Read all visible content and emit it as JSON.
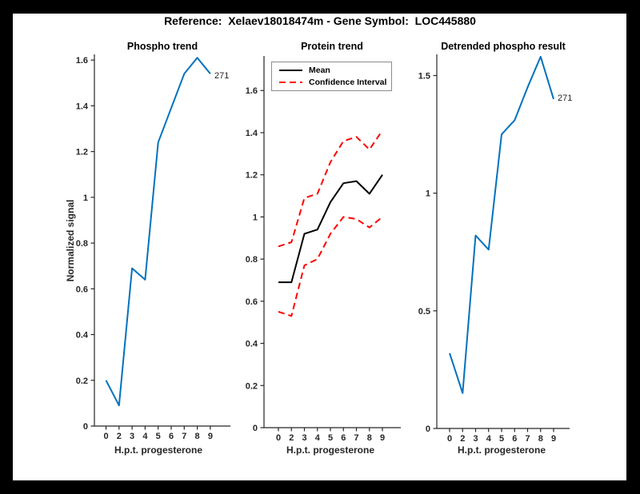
{
  "header": {
    "title": "Reference:  Xelaev18018474m - Gene Symbol:  LOC445880"
  },
  "colors": {
    "axis": "#262626",
    "blue": "#0072BD",
    "red": "#FF0000",
    "black": "#000000",
    "frame": "#000000",
    "canvas": "#ffffff"
  },
  "chart_data": [
    {
      "type": "line",
      "title": "Phospho trend",
      "xlabel": "H.p.t. progesterone",
      "ylabel": "Normalized signal",
      "x_tick_labels": [
        "0",
        "2",
        "3",
        "4",
        "5",
        "6",
        "7",
        "8",
        "9"
      ],
      "y_ticks": [
        0,
        0.2,
        0.4,
        0.6,
        0.8,
        1,
        1.2,
        1.4,
        1.6
      ],
      "ylim": [
        0,
        1.63
      ],
      "grid": false,
      "series": [
        {
          "key": "phospho-line",
          "name": "Phospho",
          "color": "#0072BD",
          "style": "solid",
          "values": [
            0.2,
            0.09,
            0.69,
            0.64,
            1.24,
            1.39,
            1.54,
            1.61,
            1.54
          ]
        }
      ],
      "annotation": {
        "text": "271",
        "at_x": "9"
      }
    },
    {
      "type": "line",
      "title": "Protein trend",
      "xlabel": "H.p.t. progesterone",
      "ylabel": "",
      "x_tick_labels": [
        "0",
        "2",
        "3",
        "4",
        "5",
        "6",
        "7",
        "8",
        "9"
      ],
      "y_ticks": [
        0,
        0.2,
        0.4,
        0.6,
        0.8,
        1,
        1.2,
        1.4,
        1.6
      ],
      "ylim": [
        0,
        1.76
      ],
      "grid": false,
      "legend": {
        "position": "top-left",
        "entries": [
          {
            "label": "Mean",
            "color": "#000000",
            "style": "solid"
          },
          {
            "label": "Confidence Interval",
            "color": "#FF0000",
            "style": "dashed"
          }
        ]
      },
      "series": [
        {
          "key": "mean-line",
          "name": "Mean",
          "color": "#000000",
          "style": "solid",
          "values": [
            0.69,
            0.69,
            0.92,
            0.94,
            1.07,
            1.16,
            1.17,
            1.11,
            1.2
          ]
        },
        {
          "key": "ci-upper-line",
          "name": "Confidence Interval upper",
          "color": "#FF0000",
          "style": "dashed",
          "values": [
            0.86,
            0.88,
            1.09,
            1.11,
            1.26,
            1.36,
            1.38,
            1.32,
            1.41
          ]
        },
        {
          "key": "ci-lower-line",
          "name": "Confidence Interval lower",
          "color": "#FF0000",
          "style": "dashed",
          "values": [
            0.55,
            0.53,
            0.77,
            0.8,
            0.92,
            1.0,
            0.99,
            0.95,
            1.0
          ]
        }
      ]
    },
    {
      "type": "line",
      "title": "Detrended phospho result",
      "xlabel": "H.p.t. progesterone",
      "ylabel": "",
      "x_tick_labels": [
        "0",
        "2",
        "3",
        "4",
        "5",
        "6",
        "7",
        "8",
        "9"
      ],
      "y_ticks": [
        0,
        0.5,
        1,
        1.5
      ],
      "ylim": [
        0,
        1.59
      ],
      "grid": false,
      "series": [
        {
          "key": "detrended-line",
          "name": "Detrended phospho",
          "color": "#0072BD",
          "style": "solid",
          "values": [
            0.32,
            0.15,
            0.82,
            0.76,
            1.25,
            1.31,
            1.45,
            1.58,
            1.4
          ]
        }
      ],
      "annotation": {
        "text": "271",
        "at_x": "9"
      }
    }
  ]
}
